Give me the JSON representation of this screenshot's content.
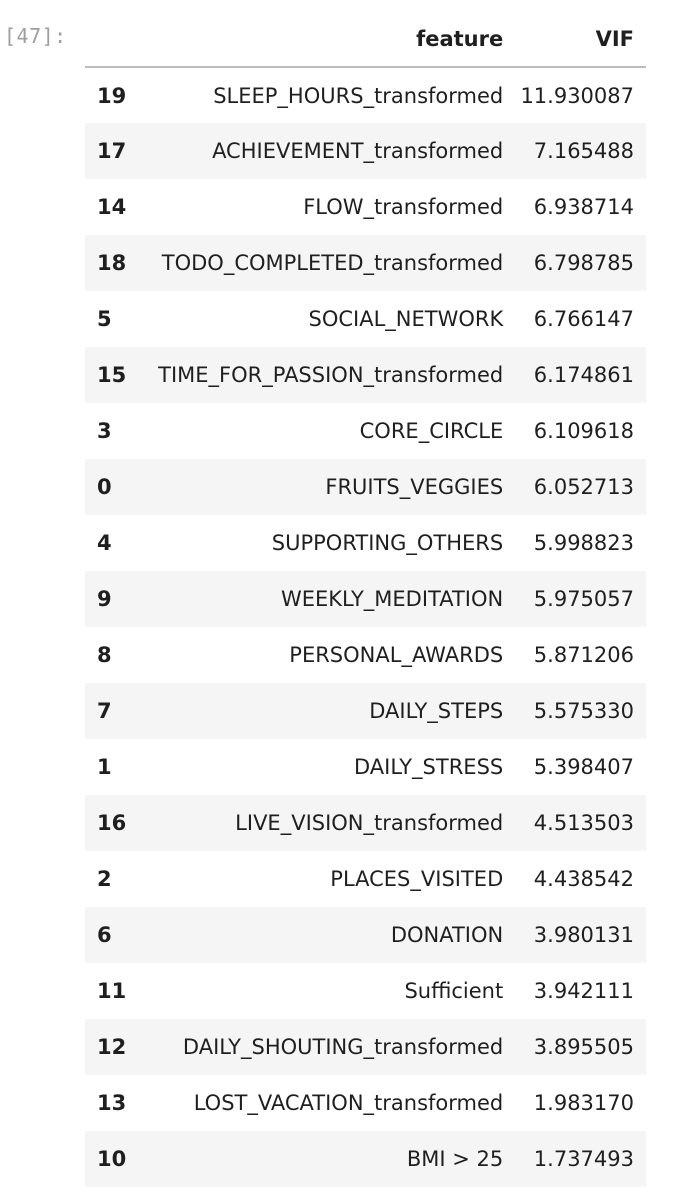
{
  "prompt": "[47]:",
  "columns": {
    "index": "",
    "feature": "feature",
    "vif": "VIF"
  },
  "rows": [
    {
      "index": "19",
      "feature": "SLEEP_HOURS_transformed",
      "vif": "11.930087"
    },
    {
      "index": "17",
      "feature": "ACHIEVEMENT_transformed",
      "vif": "7.165488"
    },
    {
      "index": "14",
      "feature": "FLOW_transformed",
      "vif": "6.938714"
    },
    {
      "index": "18",
      "feature": "TODO_COMPLETED_transformed",
      "vif": "6.798785"
    },
    {
      "index": "5",
      "feature": "SOCIAL_NETWORK",
      "vif": "6.766147"
    },
    {
      "index": "15",
      "feature": "TIME_FOR_PASSION_transformed",
      "vif": "6.174861"
    },
    {
      "index": "3",
      "feature": "CORE_CIRCLE",
      "vif": "6.109618"
    },
    {
      "index": "0",
      "feature": "FRUITS_VEGGIES",
      "vif": "6.052713"
    },
    {
      "index": "4",
      "feature": "SUPPORTING_OTHERS",
      "vif": "5.998823"
    },
    {
      "index": "9",
      "feature": "WEEKLY_MEDITATION",
      "vif": "5.975057"
    },
    {
      "index": "8",
      "feature": "PERSONAL_AWARDS",
      "vif": "5.871206"
    },
    {
      "index": "7",
      "feature": "DAILY_STEPS",
      "vif": "5.575330"
    },
    {
      "index": "1",
      "feature": "DAILY_STRESS",
      "vif": "5.398407"
    },
    {
      "index": "16",
      "feature": "LIVE_VISION_transformed",
      "vif": "4.513503"
    },
    {
      "index": "2",
      "feature": "PLACES_VISITED",
      "vif": "4.438542"
    },
    {
      "index": "6",
      "feature": "DONATION",
      "vif": "3.980131"
    },
    {
      "index": "11",
      "feature": "Sufficient",
      "vif": "3.942111"
    },
    {
      "index": "12",
      "feature": "DAILY_SHOUTING_transformed",
      "vif": "3.895505"
    },
    {
      "index": "13",
      "feature": "LOST_VACATION_transformed",
      "vif": "1.983170"
    },
    {
      "index": "10",
      "feature": "BMI > 25",
      "vif": "1.737493"
    }
  ]
}
